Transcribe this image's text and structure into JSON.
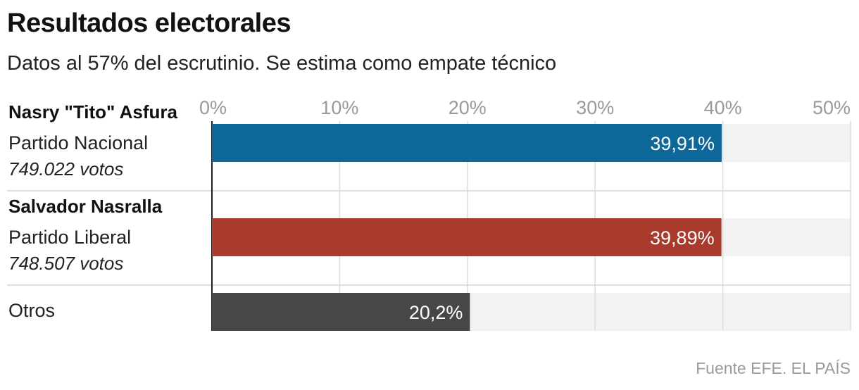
{
  "header": {
    "title": "Resultados electorales",
    "subtitle": "Datos al 57% del escrutinio. Se estima como empate técnico"
  },
  "source": "Fuente EFE. EL PAÍS",
  "chart_data": {
    "type": "bar",
    "orientation": "horizontal",
    "title": "Resultados electorales",
    "subtitle": "Datos al 57% del escrutinio. Se estima como empate técnico",
    "xlim": [
      0,
      50
    ],
    "x_ticks": [
      0,
      10,
      20,
      30,
      40,
      50
    ],
    "x_tick_labels": [
      "0%",
      "10%",
      "20%",
      "30%",
      "40%",
      "50%"
    ],
    "grid": true,
    "rows": [
      {
        "name": "Nasry \"Tito\" Asfura",
        "party": "Partido Nacional",
        "votes": "749.022 votos",
        "value": 39.91,
        "label": "39,91%",
        "color": "#0d6799"
      },
      {
        "name": "Salvador Nasralla",
        "party": "Partido Liberal",
        "votes": "748.507 votos",
        "value": 39.89,
        "label": "39,89%",
        "color": "#a83b2c"
      },
      {
        "name": "Otros",
        "party": "",
        "votes": "",
        "value": 20.2,
        "label": "20,2%",
        "color": "#474747"
      }
    ]
  }
}
